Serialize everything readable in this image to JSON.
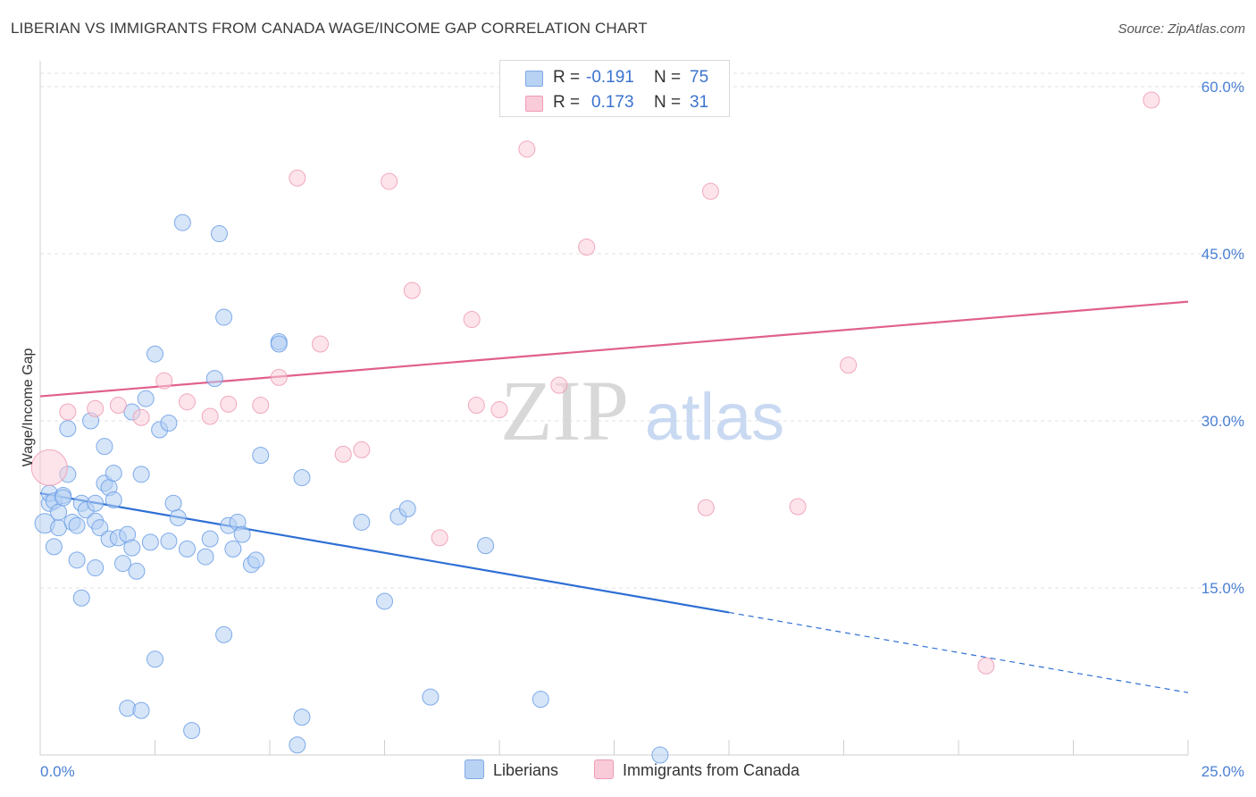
{
  "title": "LIBERIAN VS IMMIGRANTS FROM CANADA WAGE/INCOME GAP CORRELATION CHART",
  "source": "Source: ZipAtlas.com",
  "watermark": {
    "zip": "ZIP",
    "atlas": "atlas"
  },
  "legend": {
    "rows": [
      {
        "r_label": "R =",
        "r_value": "-0.191",
        "n_label": "N =",
        "n_value": "75",
        "color": "#a9c8f2"
      },
      {
        "r_label": "R =",
        "r_value": "0.173",
        "n_label": "N =",
        "n_value": "31",
        "color": "#f5b8ca"
      }
    ]
  },
  "bottom_legend": {
    "liberians": "Liberians",
    "canada": "Immigrants from Canada"
  },
  "chart_data": {
    "type": "scatter",
    "ylabel": "Wage/Income Gap",
    "xlim": [
      0,
      25
    ],
    "ylim": [
      0,
      60
    ],
    "x_tick_labels": [
      "0.0%",
      "25.0%"
    ],
    "y_ticks": [
      15,
      30,
      45,
      60
    ],
    "y_tick_labels": [
      "15.0%",
      "30.0%",
      "45.0%",
      "60.0%"
    ],
    "grid": true,
    "series": [
      {
        "name": "Liberians",
        "color": "#6a9ee8",
        "fill": "#b5cff3",
        "trend": {
          "x0": 0,
          "y0": 23.5,
          "x1": 15,
          "y1": 12.8,
          "dash_to_x": 25,
          "dash_to_y": 5.6,
          "color": "#2e6fd4"
        },
        "points": [
          [
            0.1,
            20.8
          ],
          [
            0.2,
            22.6
          ],
          [
            0.2,
            23.5
          ],
          [
            0.3,
            18.7
          ],
          [
            0.3,
            22.8
          ],
          [
            0.4,
            20.4
          ],
          [
            0.4,
            21.8
          ],
          [
            0.5,
            23.3
          ],
          [
            0.5,
            23.1
          ],
          [
            0.6,
            25.2
          ],
          [
            0.6,
            29.3
          ],
          [
            0.7,
            20.9
          ],
          [
            0.8,
            20.6
          ],
          [
            0.8,
            17.5
          ],
          [
            0.9,
            14.1
          ],
          [
            0.9,
            22.6
          ],
          [
            1.0,
            22.0
          ],
          [
            1.1,
            30.0
          ],
          [
            1.2,
            22.6
          ],
          [
            1.2,
            21.0
          ],
          [
            1.2,
            16.8
          ],
          [
            1.3,
            20.4
          ],
          [
            1.4,
            27.7
          ],
          [
            1.4,
            24.4
          ],
          [
            1.5,
            24.0
          ],
          [
            1.5,
            19.4
          ],
          [
            1.6,
            25.3
          ],
          [
            1.6,
            22.9
          ],
          [
            1.7,
            19.5
          ],
          [
            1.8,
            17.2
          ],
          [
            1.9,
            19.8
          ],
          [
            1.9,
            4.2
          ],
          [
            2.0,
            30.8
          ],
          [
            2.0,
            18.6
          ],
          [
            2.1,
            16.5
          ],
          [
            2.2,
            25.2
          ],
          [
            2.2,
            4.0
          ],
          [
            2.3,
            32.0
          ],
          [
            2.4,
            19.1
          ],
          [
            2.5,
            36.0
          ],
          [
            2.5,
            8.6
          ],
          [
            2.6,
            29.2
          ],
          [
            2.8,
            19.2
          ],
          [
            2.8,
            29.8
          ],
          [
            2.9,
            22.6
          ],
          [
            3.0,
            21.3
          ],
          [
            3.1,
            47.8
          ],
          [
            3.2,
            18.5
          ],
          [
            3.3,
            2.2
          ],
          [
            3.6,
            17.8
          ],
          [
            3.7,
            19.4
          ],
          [
            3.8,
            33.8
          ],
          [
            3.9,
            46.8
          ],
          [
            4.0,
            39.3
          ],
          [
            4.0,
            10.8
          ],
          [
            4.1,
            20.6
          ],
          [
            4.2,
            18.5
          ],
          [
            4.3,
            20.9
          ],
          [
            4.4,
            19.8
          ],
          [
            4.6,
            17.1
          ],
          [
            4.7,
            17.5
          ],
          [
            4.8,
            26.9
          ],
          [
            5.2,
            37.1
          ],
          [
            5.2,
            36.9
          ],
          [
            5.6,
            0.9
          ],
          [
            5.7,
            3.4
          ],
          [
            5.7,
            24.9
          ],
          [
            7.0,
            20.9
          ],
          [
            7.5,
            13.8
          ],
          [
            7.8,
            21.4
          ],
          [
            8.0,
            22.1
          ],
          [
            8.5,
            5.2
          ],
          [
            9.7,
            18.8
          ],
          [
            10.9,
            5.0
          ],
          [
            13.5,
            0.0
          ]
        ]
      },
      {
        "name": "Immigrants from Canada",
        "color": "#ef9ab3",
        "fill": "#f9cdd9",
        "trend": {
          "x0": 0,
          "y0": 32.2,
          "x1": 25,
          "y1": 40.7,
          "color": "#e0608c"
        },
        "points": [
          [
            0.2,
            25.8
          ],
          [
            0.6,
            30.8
          ],
          [
            1.2,
            31.1
          ],
          [
            1.7,
            31.4
          ],
          [
            2.2,
            30.3
          ],
          [
            2.7,
            33.6
          ],
          [
            3.2,
            31.7
          ],
          [
            3.7,
            30.4
          ],
          [
            4.1,
            31.5
          ],
          [
            4.8,
            31.4
          ],
          [
            5.2,
            33.9
          ],
          [
            5.6,
            51.8
          ],
          [
            6.1,
            36.9
          ],
          [
            6.6,
            27.0
          ],
          [
            7.0,
            27.4
          ],
          [
            7.6,
            51.5
          ],
          [
            8.1,
            41.7
          ],
          [
            8.7,
            19.5
          ],
          [
            9.4,
            39.1
          ],
          [
            9.5,
            31.4
          ],
          [
            10.0,
            31.0
          ],
          [
            10.6,
            54.4
          ],
          [
            11.3,
            33.2
          ],
          [
            11.9,
            45.6
          ],
          [
            13.2,
            58.8
          ],
          [
            14.5,
            22.2
          ],
          [
            14.6,
            50.6
          ],
          [
            16.5,
            22.3
          ],
          [
            17.6,
            35.0
          ],
          [
            20.6,
            8.0
          ],
          [
            24.2,
            58.8
          ]
        ]
      }
    ]
  }
}
